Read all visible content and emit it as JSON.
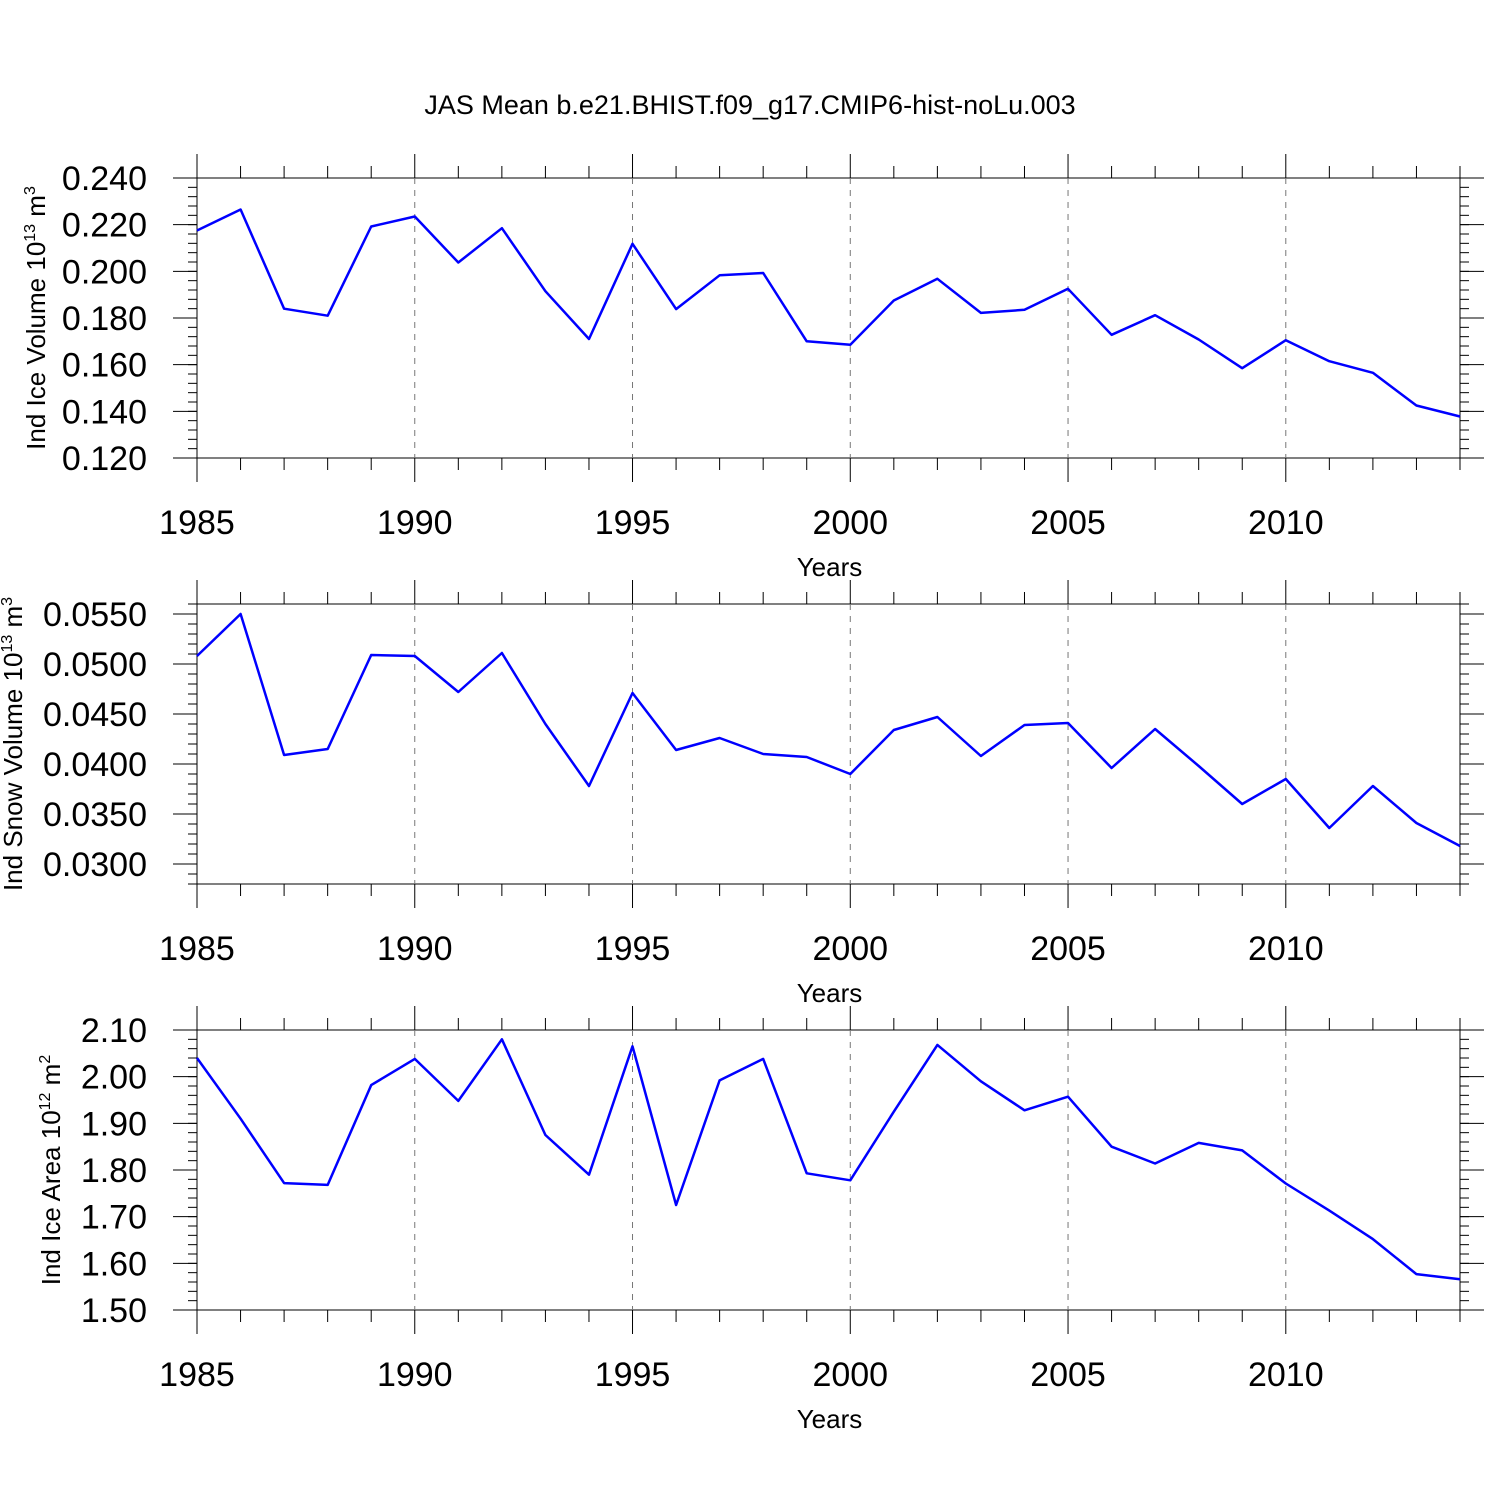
{
  "figure": {
    "title": "JAS Mean b.e21.BHIST.f09_g17.CMIP6-hist-noLu.003"
  },
  "chart_data": [
    {
      "type": "line",
      "xlabel": "Years",
      "ylabel": "Ind Ice Volume 10",
      "ylabel_exp": "13",
      "ylabel_unit": " m",
      "ylabel_unit_exp": "3",
      "xlim": [
        1985,
        2014
      ],
      "ylim": [
        0.12,
        0.24
      ],
      "x_ticks": [
        1985,
        1990,
        1995,
        2000,
        2005,
        2010
      ],
      "x_tick_labels": [
        "1985",
        "1990",
        "1995",
        "2000",
        "2005",
        "2010"
      ],
      "y_ticks": [
        0.12,
        0.14,
        0.16,
        0.18,
        0.2,
        0.22,
        0.24
      ],
      "y_tick_labels": [
        "0.120",
        "0.140",
        "0.160",
        "0.180",
        "0.200",
        "0.220",
        "0.240"
      ],
      "grid": "vertical dashed at major x ticks",
      "color": "#0000ff",
      "x": [
        1985,
        1986,
        1987,
        1988,
        1989,
        1990,
        1991,
        1992,
        1993,
        1994,
        1995,
        1996,
        1997,
        1998,
        1999,
        2000,
        2001,
        2002,
        2003,
        2004,
        2005,
        2006,
        2007,
        2008,
        2009,
        2010,
        2011,
        2012,
        2013,
        2014
      ],
      "values": [
        0.2175,
        0.2265,
        0.184,
        0.181,
        0.2192,
        0.2235,
        0.2038,
        0.2185,
        0.1915,
        0.171,
        0.2118,
        0.1838,
        0.1983,
        0.1993,
        0.17,
        0.1685,
        0.1875,
        0.1968,
        0.1822,
        0.1835,
        0.1925,
        0.1728,
        0.1812,
        0.1708,
        0.1585,
        0.1705,
        0.1615,
        0.1565,
        0.1425,
        0.1378
      ]
    },
    {
      "type": "line",
      "xlabel": "Years",
      "ylabel": "Ind Snow Volume 10",
      "ylabel_exp": "13",
      "ylabel_unit": " m",
      "ylabel_unit_exp": "3",
      "xlim": [
        1985,
        2014
      ],
      "ylim": [
        0.028,
        0.056
      ],
      "x_ticks": [
        1985,
        1990,
        1995,
        2000,
        2005,
        2010
      ],
      "x_tick_labels": [
        "1985",
        "1990",
        "1995",
        "2000",
        "2005",
        "2010"
      ],
      "y_ticks": [
        0.03,
        0.035,
        0.04,
        0.045,
        0.05,
        0.055
      ],
      "y_tick_labels": [
        "0.0300",
        "0.0350",
        "0.0400",
        "0.0450",
        "0.0500",
        "0.0550"
      ],
      "grid": "vertical dashed at major x ticks",
      "color": "#0000ff",
      "x": [
        1985,
        1986,
        1987,
        1988,
        1989,
        1990,
        1991,
        1992,
        1993,
        1994,
        1995,
        1996,
        1997,
        1998,
        1999,
        2000,
        2001,
        2002,
        2003,
        2004,
        2005,
        2006,
        2007,
        2008,
        2009,
        2010,
        2011,
        2012,
        2013,
        2014
      ],
      "values": [
        0.0508,
        0.055,
        0.0409,
        0.0415,
        0.0509,
        0.0508,
        0.0472,
        0.0511,
        0.044,
        0.0378,
        0.0471,
        0.0414,
        0.0426,
        0.041,
        0.0407,
        0.039,
        0.0434,
        0.0447,
        0.0408,
        0.0439,
        0.0441,
        0.0396,
        0.0435,
        0.0398,
        0.036,
        0.0385,
        0.0336,
        0.0378,
        0.0341,
        0.0318
      ]
    },
    {
      "type": "line",
      "xlabel": "Years",
      "ylabel": "Ind Ice Area 10",
      "ylabel_exp": "12",
      "ylabel_unit": " m",
      "ylabel_unit_exp": "2",
      "xlim": [
        1985,
        2014
      ],
      "ylim": [
        1.5,
        2.1
      ],
      "x_ticks": [
        1985,
        1990,
        1995,
        2000,
        2005,
        2010
      ],
      "x_tick_labels": [
        "1985",
        "1990",
        "1995",
        "2000",
        "2005",
        "2010"
      ],
      "y_ticks": [
        1.5,
        1.6,
        1.7,
        1.8,
        1.9,
        2.0,
        2.1
      ],
      "y_tick_labels": [
        "1.50",
        "1.60",
        "1.70",
        "1.80",
        "1.90",
        "2.00",
        "2.10"
      ],
      "grid": "vertical dashed at major x ticks",
      "color": "#0000ff",
      "x": [
        1985,
        1986,
        1987,
        1988,
        1989,
        1990,
        1991,
        1992,
        1993,
        1994,
        1995,
        1996,
        1997,
        1998,
        1999,
        2000,
        2001,
        2002,
        2003,
        2004,
        2005,
        2006,
        2007,
        2008,
        2009,
        2010,
        2011,
        2012,
        2013,
        2014
      ],
      "values": [
        2.04,
        1.91,
        1.772,
        1.768,
        1.982,
        2.038,
        1.948,
        2.08,
        1.875,
        1.79,
        2.065,
        1.725,
        1.992,
        2.038,
        1.793,
        1.778,
        1.925,
        2.068,
        1.99,
        1.928,
        1.957,
        1.85,
        1.814,
        1.858,
        1.842,
        1.771,
        1.713,
        1.652,
        1.577,
        1.566
      ]
    }
  ]
}
